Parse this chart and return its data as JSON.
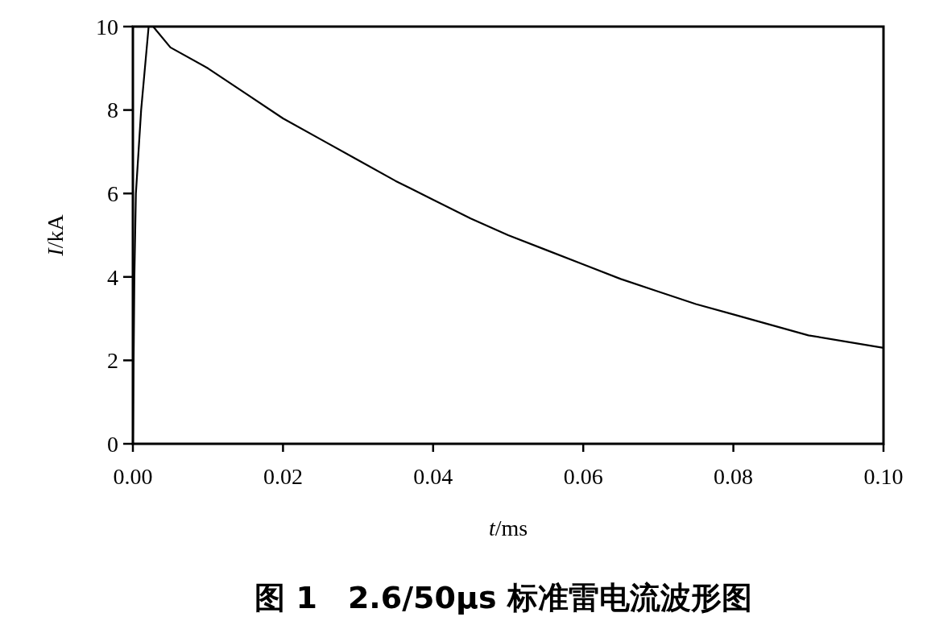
{
  "chart_data": {
    "type": "line",
    "title": "图 1　2.6/50μs 标准雷电流波形图",
    "xlabel": "t/ms",
    "ylabel": "I/kA",
    "x": [
      0,
      0.0002,
      0.0004,
      0.0011,
      0.0021,
      0.0027,
      0.005,
      0.01,
      0.015,
      0.02,
      0.025,
      0.03,
      0.035,
      0.04,
      0.045,
      0.05,
      0.055,
      0.06,
      0.065,
      0.07,
      0.075,
      0.08,
      0.085,
      0.09,
      0.095,
      0.1
    ],
    "series": [
      {
        "color": "#000000",
        "values": [
          0,
          4,
          6,
          8,
          10,
          10,
          9.5,
          9.0,
          8.4,
          7.8,
          7.3,
          6.8,
          6.3,
          5.85,
          5.4,
          5.0,
          4.65,
          4.3,
          3.95,
          3.65,
          3.35,
          3.1,
          2.85,
          2.6,
          2.45,
          2.3
        ]
      }
    ],
    "xlim": [
      0,
      0.1
    ],
    "ylim": [
      0,
      10
    ],
    "xticks": [
      {
        "value": 0,
        "label": "0.00"
      },
      {
        "value": 0.02,
        "label": "0.02"
      },
      {
        "value": 0.04,
        "label": "0.04"
      },
      {
        "value": 0.06,
        "label": "0.06"
      },
      {
        "value": 0.08,
        "label": "0.08"
      },
      {
        "value": 0.1,
        "label": "0.10"
      }
    ],
    "yticks": [
      0,
      2,
      4,
      6,
      8,
      10
    ],
    "grid": false,
    "marker": "none",
    "line_style": "solid"
  }
}
